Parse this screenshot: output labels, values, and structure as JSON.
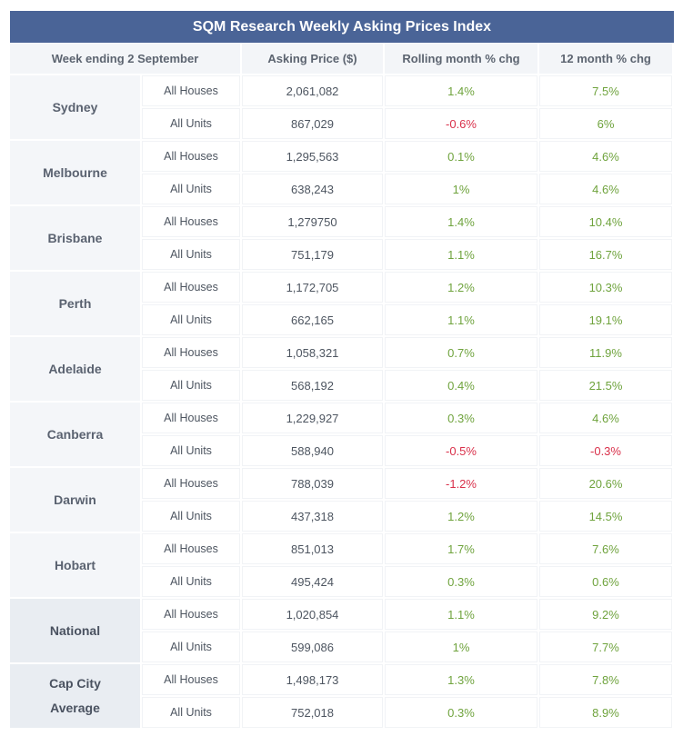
{
  "title": "SQM Research Weekly Asking Prices Index",
  "headers": {
    "week": "Week ending 2 September",
    "price": "Asking Price ($)",
    "rolling": "Rolling month % chg",
    "twelve": "12 month % chg"
  },
  "rows": [
    {
      "city": "Sydney",
      "summary": false,
      "houses": {
        "type": "All Houses",
        "price": "2,061,082",
        "rolling": "1.4%",
        "twelve": "7.5%"
      },
      "units": {
        "type": "All Units",
        "price": "867,029",
        "rolling": "-0.6%",
        "twelve": "6%"
      }
    },
    {
      "city": "Melbourne",
      "summary": false,
      "houses": {
        "type": "All Houses",
        "price": "1,295,563",
        "rolling": "0.1%",
        "twelve": "4.6%"
      },
      "units": {
        "type": "All Units",
        "price": "638,243",
        "rolling": "1%",
        "twelve": "4.6%"
      }
    },
    {
      "city": "Brisbane",
      "summary": false,
      "houses": {
        "type": "All Houses",
        "price": "1,279750",
        "rolling": "1.4%",
        "twelve": "10.4%"
      },
      "units": {
        "type": "All Units",
        "price": "751,179",
        "rolling": "1.1%",
        "twelve": "16.7%"
      }
    },
    {
      "city": "Perth",
      "summary": false,
      "houses": {
        "type": "All Houses",
        "price": "1,172,705",
        "rolling": "1.2%",
        "twelve": "10.3%"
      },
      "units": {
        "type": "All Units",
        "price": "662,165",
        "rolling": "1.1%",
        "twelve": "19.1%"
      }
    },
    {
      "city": "Adelaide",
      "summary": false,
      "houses": {
        "type": "All Houses",
        "price": "1,058,321",
        "rolling": "0.7%",
        "twelve": "11.9%"
      },
      "units": {
        "type": "All Units",
        "price": "568,192",
        "rolling": "0.4%",
        "twelve": "21.5%"
      }
    },
    {
      "city": "Canberra",
      "summary": false,
      "houses": {
        "type": "All Houses",
        "price": "1,229,927",
        "rolling": "0.3%",
        "twelve": "4.6%"
      },
      "units": {
        "type": "All Units",
        "price": "588,940",
        "rolling": "-0.5%",
        "twelve": "-0.3%"
      }
    },
    {
      "city": "Darwin",
      "summary": false,
      "houses": {
        "type": "All Houses",
        "price": "788,039",
        "rolling": "-1.2%",
        "twelve": "20.6%"
      },
      "units": {
        "type": "All Units",
        "price": "437,318",
        "rolling": "1.2%",
        "twelve": "14.5%"
      }
    },
    {
      "city": "Hobart",
      "summary": false,
      "houses": {
        "type": "All Houses",
        "price": "851,013",
        "rolling": "1.7%",
        "twelve": "7.6%"
      },
      "units": {
        "type": "All Units",
        "price": "495,424",
        "rolling": "0.3%",
        "twelve": "0.6%"
      }
    },
    {
      "city": "National",
      "summary": true,
      "houses": {
        "type": "All Houses",
        "price": "1,020,854",
        "rolling": "1.1%",
        "twelve": "9.2%"
      },
      "units": {
        "type": "All Units",
        "price": "599,086",
        "rolling": "1%",
        "twelve": "7.7%"
      }
    },
    {
      "city": "Cap City Average",
      "city_lines": [
        "Cap City",
        "Average"
      ],
      "summary": true,
      "houses": {
        "type": "All Houses",
        "price": "1,498,173",
        "rolling": "1.3%",
        "twelve": "7.8%"
      },
      "units": {
        "type": "All Units",
        "price": "752,018",
        "rolling": "0.3%",
        "twelve": "8.9%"
      }
    }
  ],
  "colors": {
    "header_bar": "#4a6497",
    "positive": "#6fa33d",
    "negative": "#d9304a"
  }
}
